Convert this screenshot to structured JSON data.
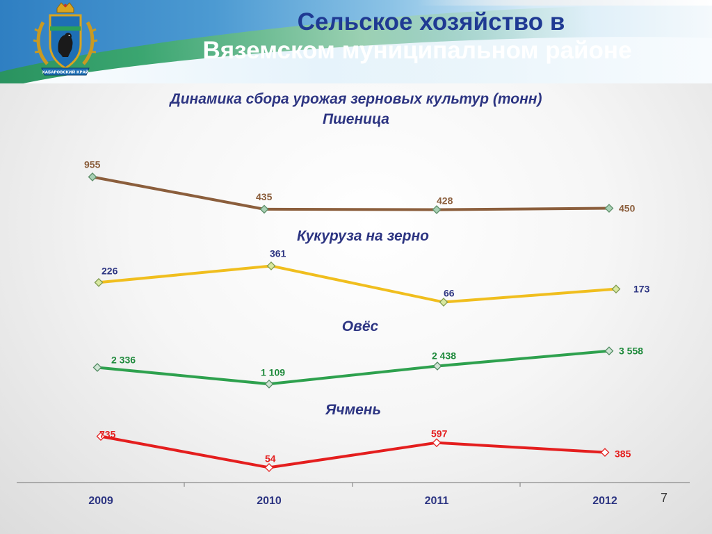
{
  "header": {
    "title_line1": "Сельское хозяйство в",
    "title_line2": "Вяземском муниципальном районе"
  },
  "subtitle": {
    "line1": "Динамика сбора урожая зерновых культур (тонн)",
    "line2": "Пшеница"
  },
  "section_labels": {
    "corn": "Кукуруза на зерно",
    "oats": "Овёс",
    "barley": "Ячмень"
  },
  "emblem": {
    "icon": "coat-of-arms-icon",
    "text": "ХАБАРОВСКИЙ КРАЙ"
  },
  "page_number": "7",
  "colors": {
    "wheat": "#8b5e3c",
    "corn": "#f0be1e",
    "oats": "#2ea14e",
    "barley": "#e41e1e",
    "label_blue": "#2d3582"
  },
  "chart_data": {
    "type": "line",
    "categories": [
      "2009",
      "2010",
      "2011",
      "2012"
    ],
    "series": [
      {
        "name": "Пшеница",
        "values": [
          955,
          435,
          428,
          450
        ],
        "labels": [
          "955",
          "435",
          "428",
          "450"
        ]
      },
      {
        "name": "Кукуруза на зерно",
        "values": [
          226,
          361,
          66,
          173
        ],
        "labels": [
          "226",
          "361",
          "66",
          "173"
        ]
      },
      {
        "name": "Овёс",
        "values": [
          2336,
          1109,
          2438,
          3558
        ],
        "labels": [
          "2 336",
          "1 109",
          "2 438",
          "3 558"
        ]
      },
      {
        "name": "Ячмень",
        "values": [
          735,
          54,
          597,
          385
        ],
        "labels": [
          "735",
          "54",
          "597",
          "385"
        ]
      }
    ]
  }
}
